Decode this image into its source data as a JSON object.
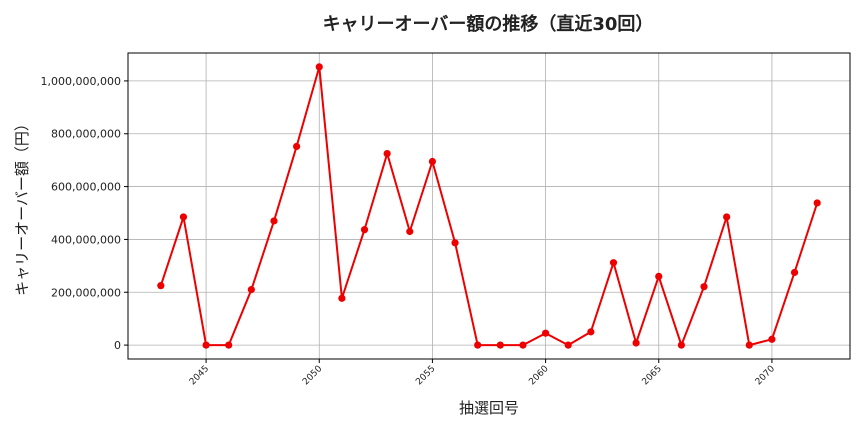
{
  "chart_data": {
    "type": "line",
    "title": "キャリーオーバー額の推移（直近30回）",
    "xlabel": "抽選回号",
    "ylabel": "キャリーオーバー額（円）",
    "x": [
      2043,
      2044,
      2045,
      2046,
      2047,
      2048,
      2049,
      2050,
      2051,
      2052,
      2053,
      2054,
      2055,
      2056,
      2057,
      2058,
      2059,
      2060,
      2061,
      2062,
      2063,
      2064,
      2065,
      2066,
      2067,
      2068,
      2069,
      2070,
      2071,
      2072
    ],
    "series": [
      {
        "values": [
          225000000,
          485000000,
          0,
          0,
          210000000,
          470000000,
          752000000,
          1053000000,
          177000000,
          437000000,
          725000000,
          430000000,
          695000000,
          387000000,
          0,
          0,
          0,
          45000000,
          0,
          50000000,
          312000000,
          8000000,
          260000000,
          0,
          221000000,
          485000000,
          0,
          22000000,
          275000000,
          538000000
        ]
      }
    ],
    "xticks": [
      2045,
      2050,
      2055,
      2060,
      2065,
      2070
    ],
    "yticks": [
      0,
      200000000,
      400000000,
      600000000,
      800000000,
      1000000000
    ],
    "ytick_labels": [
      "0",
      "200,000,000",
      "400,000,000",
      "600,000,000",
      "800,000,000",
      "1,000,000,000"
    ],
    "xlim": [
      2041.55,
      2073.45
    ],
    "ylim": [
      -52650000,
      1105650000
    ],
    "grid": true,
    "line_color": "#ee0000",
    "marker_color": "#ee0000"
  }
}
